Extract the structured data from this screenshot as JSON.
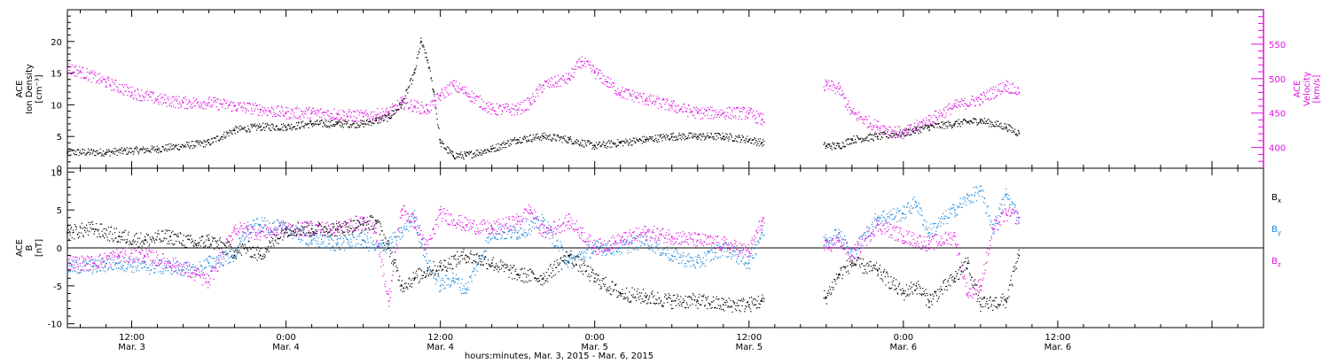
{
  "figure": {
    "xaxis_label": "hours:minutes, Mar.  3, 2015 - Mar.  6, 2015"
  },
  "colors": {
    "black": "#000000",
    "magenta": "#e010e0",
    "blue": "#1a88dd"
  },
  "chart_data": [
    {
      "type": "scatter",
      "panel": "top",
      "xlabel": "hours:minutes, Mar.  3, 2015 - Mar.  6, 2015",
      "xlim": [
        7.0,
        100.0
      ],
      "x_unit": "hours since 00:00 Mar. 3, 2015",
      "x_ticks": [
        {
          "x": 12,
          "time": "12:00",
          "date": "Mar. 3"
        },
        {
          "x": 24,
          "time": "0:00",
          "date": "Mar. 4"
        },
        {
          "x": 36,
          "time": "12:00",
          "date": "Mar. 4"
        },
        {
          "x": 48,
          "time": "0:00",
          "date": "Mar. 5"
        },
        {
          "x": 60,
          "time": "12:00",
          "date": "Mar. 5"
        },
        {
          "x": 72,
          "time": "0:00",
          "date": "Mar. 6"
        },
        {
          "x": 84,
          "time": "12:00",
          "date": "Mar. 6"
        }
      ],
      "left_axis": {
        "label_lines": [
          "ACE",
          "Ion Density",
          "[cm⁻³]"
        ],
        "ylim": [
          0,
          25
        ],
        "ticks": [
          "0",
          "5",
          "10",
          "15",
          "20"
        ]
      },
      "right_axis": {
        "label_lines": [
          "ACE",
          "Velocity",
          "[km/s]"
        ],
        "ylim": [
          370,
          600
        ],
        "ticks": [
          "400",
          "450",
          "500",
          "550"
        ]
      },
      "series": [
        {
          "axis": "left",
          "color": "#000000",
          "x": [
            7,
            10,
            14,
            18,
            20,
            22,
            24,
            26,
            28,
            30,
            31,
            32,
            33,
            34,
            34.5,
            35,
            35.5,
            36,
            37,
            38,
            40,
            42,
            44,
            46,
            48,
            50,
            52,
            54,
            56,
            58,
            60,
            61,
            66,
            67,
            68,
            70,
            72,
            73,
            74,
            76,
            78,
            80,
            81
          ],
          "y": [
            2.5,
            2.5,
            3.0,
            4.0,
            6.0,
            6.5,
            6.5,
            7.0,
            7.0,
            7.0,
            7.5,
            8.0,
            10.0,
            15.0,
            20.0,
            17.0,
            12.0,
            4.0,
            2.0,
            2.0,
            3.0,
            4.5,
            5.0,
            4.5,
            3.5,
            4.0,
            4.5,
            5.0,
            5.0,
            5.0,
            4.5,
            4.0,
            3.5,
            3.5,
            4.5,
            5.0,
            5.5,
            6.0,
            6.5,
            7.0,
            7.5,
            6.5,
            5.5
          ]
        },
        {
          "axis": "right",
          "color": "#e010e0",
          "x": [
            7,
            8,
            10,
            12,
            14,
            16,
            18,
            20,
            22,
            24,
            26,
            28,
            30,
            32,
            33,
            34,
            35,
            36,
            37,
            38,
            40,
            42,
            43,
            44,
            46,
            47,
            48,
            49,
            50,
            52,
            54,
            56,
            58,
            60,
            61,
            66,
            67,
            68,
            70,
            72,
            74,
            76,
            78,
            80,
            81
          ],
          "y": [
            515,
            510,
            495,
            480,
            470,
            465,
            465,
            460,
            455,
            450,
            450,
            448,
            445,
            450,
            465,
            460,
            455,
            475,
            490,
            480,
            455,
            455,
            465,
            490,
            500,
            525,
            510,
            495,
            480,
            470,
            460,
            450,
            450,
            450,
            440,
            490,
            485,
            450,
            430,
            420,
            440,
            460,
            470,
            490,
            480
          ]
        }
      ]
    },
    {
      "type": "scatter",
      "panel": "bottom",
      "xlabel": "hours:minutes, Mar.  3, 2015 - Mar.  6, 2015",
      "xlim": [
        7.0,
        100.0
      ],
      "left_axis": {
        "label_lines": [
          "ACE",
          "B",
          "[nT]"
        ],
        "ylim": [
          -10.5,
          10.5
        ],
        "ticks": [
          "-10",
          "-5",
          "0",
          "5",
          "10"
        ]
      },
      "zero_line": true,
      "legend": [
        "Bx",
        "By",
        "Bz"
      ],
      "series": [
        {
          "name": "Bx",
          "color": "#000000",
          "x": [
            7,
            9,
            11,
            13,
            15,
            17,
            18,
            20,
            21,
            22,
            24,
            26,
            28,
            30,
            31,
            32,
            33,
            34,
            35,
            36,
            38,
            40,
            42,
            44,
            46,
            48,
            50,
            52,
            54,
            56,
            58,
            60,
            61,
            66,
            67,
            68,
            70,
            72,
            73,
            74,
            76,
            77,
            78,
            80,
            81
          ],
          "y": [
            2.0,
            2.5,
            1.5,
            1.0,
            1.5,
            0.5,
            1.0,
            -0.5,
            0.0,
            -1.0,
            2.5,
            2.5,
            2.5,
            3.0,
            3.5,
            0.0,
            -5.0,
            -4.0,
            -3.0,
            -2.5,
            -1.0,
            -2.0,
            -3.5,
            -4.0,
            -1.0,
            -4.0,
            -6.0,
            -6.5,
            -7.0,
            -7.0,
            -7.5,
            -7.5,
            -7.0,
            -6.5,
            -3.5,
            -2.0,
            -3.0,
            -6.0,
            -5.0,
            -7.0,
            -4.0,
            -2.0,
            -7.5,
            -7.0,
            -1.0
          ]
        },
        {
          "name": "By",
          "color": "#1a88dd",
          "x": [
            7,
            9,
            11,
            13,
            15,
            17,
            18,
            20,
            21,
            22,
            24,
            26,
            28,
            30,
            31,
            32,
            33,
            34,
            35,
            36,
            37,
            38,
            40,
            42,
            44,
            46,
            48,
            50,
            52,
            54,
            56,
            58,
            60,
            61,
            66,
            67,
            68,
            70,
            72,
            73,
            74,
            76,
            77,
            78,
            79,
            80,
            81
          ],
          "y": [
            -2.5,
            -2.5,
            -2.0,
            -2.5,
            -2.5,
            -3.0,
            -2.0,
            -1.0,
            2.5,
            3.0,
            2.5,
            1.0,
            0.5,
            1.0,
            0.0,
            0.5,
            2.0,
            4.0,
            -2.0,
            -5.0,
            -4.0,
            -5.5,
            2.0,
            2.0,
            3.5,
            -2.0,
            0.0,
            0.0,
            1.0,
            -1.0,
            -2.0,
            0.0,
            -2.0,
            2.0,
            1.0,
            2.0,
            -1.0,
            4.0,
            4.5,
            6.0,
            2.0,
            5.0,
            6.5,
            7.5,
            2.5,
            7.0,
            4.0
          ]
        },
        {
          "name": "Bz",
          "color": "#e010e0",
          "x": [
            7,
            9,
            11,
            13,
            15,
            17,
            18,
            20,
            22,
            24,
            26,
            28,
            30,
            31,
            32,
            33,
            34,
            35,
            36,
            38,
            40,
            42,
            43,
            44,
            46,
            47,
            48,
            50,
            52,
            54,
            56,
            58,
            60,
            61,
            66,
            67,
            68,
            70,
            72,
            74,
            76,
            77,
            78,
            79,
            80,
            81
          ],
          "y": [
            -2.0,
            -2.0,
            -1.0,
            -1.0,
            -2.0,
            -3.5,
            -4.5,
            2.5,
            2.0,
            2.5,
            2.5,
            2.5,
            3.5,
            2.0,
            -7.0,
            5.0,
            3.5,
            0.0,
            4.5,
            3.0,
            2.5,
            3.5,
            5.0,
            2.0,
            3.5,
            2.0,
            0.0,
            1.0,
            2.0,
            1.5,
            1.0,
            0.5,
            -0.5,
            3.5,
            0.0,
            1.0,
            -1.0,
            3.0,
            1.5,
            0.5,
            1.5,
            -6.0,
            -5.0,
            2.5,
            4.5,
            4.0
          ]
        }
      ]
    }
  ]
}
